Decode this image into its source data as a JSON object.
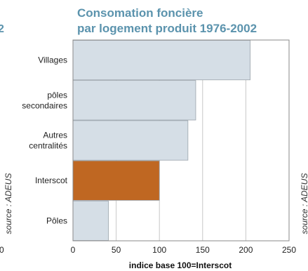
{
  "chart_data": {
    "type": "bar",
    "orientation": "horizontal",
    "title_lines": [
      "Consomation foncière",
      "par logement produit 1976-2002"
    ],
    "xlabel": "indice base 100=Interscot",
    "xlim": [
      0,
      250
    ],
    "xticks": [
      0,
      50,
      100,
      150,
      200,
      250
    ],
    "grid": "vertical",
    "categories": [
      [
        "Villages"
      ],
      [
        "pôles",
        "secondaires"
      ],
      [
        "Autres",
        "centralités"
      ],
      [
        "Interscot"
      ],
      [
        "Pôles"
      ]
    ],
    "values": [
      205,
      142,
      133,
      100,
      41
    ],
    "colors": [
      "#d5dee6",
      "#d5dee6",
      "#d5dee6",
      "#bf6722",
      "#d5dee6"
    ],
    "source_left": "source : ADEUS",
    "source_right": "source : ADEUS"
  },
  "fragments": {
    "left_title_digit": "2",
    "left_tick_zero": "0"
  }
}
